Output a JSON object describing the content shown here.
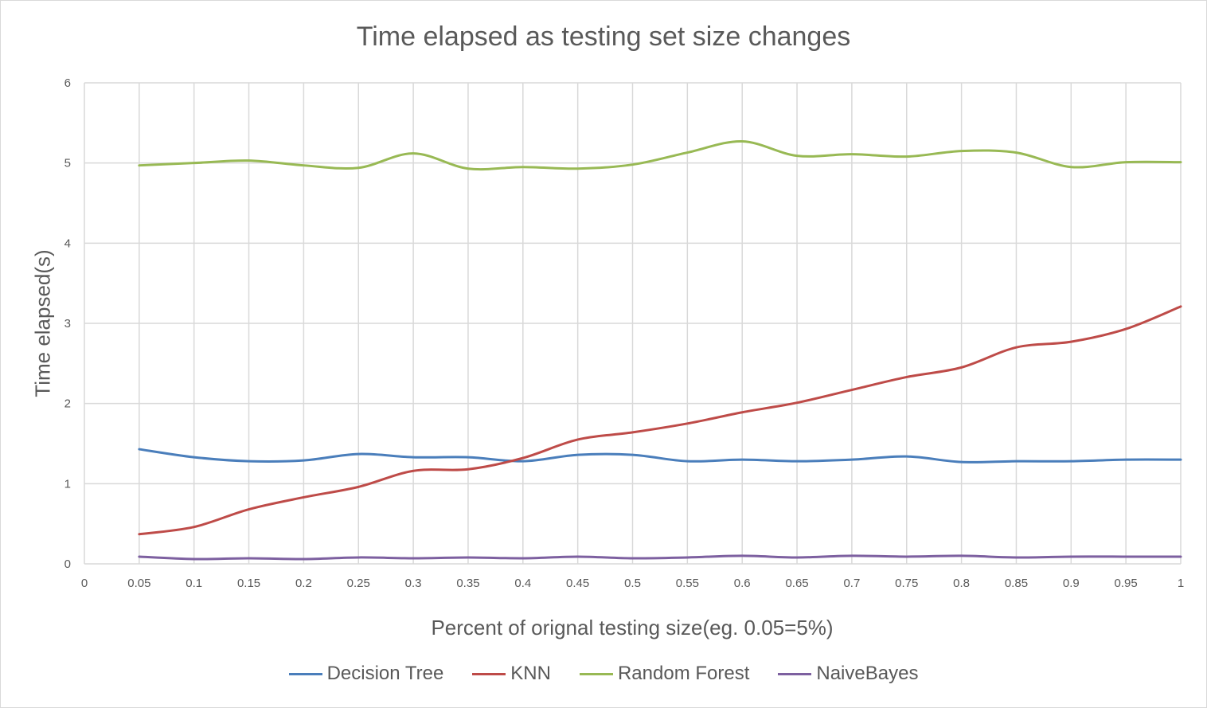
{
  "chart_data": {
    "type": "line",
    "title": "Time elapsed as testing set size changes",
    "xlabel": "Percent  of orignal testing size(eg. 0.05=5%)",
    "ylabel": "Time elapsed(s)",
    "x_ticks": [
      "0",
      "0.05",
      "0.1",
      "0.15",
      "0.2",
      "0.25",
      "0.3",
      "0.35",
      "0.4",
      "0.45",
      "0.5",
      "0.55",
      "0.6",
      "0.65",
      "0.7",
      "0.75",
      "0.8",
      "0.85",
      "0.9",
      "0.95",
      "1"
    ],
    "y_ticks": [
      "0",
      "1",
      "2",
      "3",
      "4",
      "5",
      "6"
    ],
    "ylim": [
      0,
      6
    ],
    "grid": true,
    "legend_position": "bottom",
    "x": [
      0.05,
      0.1,
      0.15,
      0.2,
      0.25,
      0.3,
      0.35,
      0.4,
      0.45,
      0.5,
      0.55,
      0.6,
      0.65,
      0.7,
      0.75,
      0.8,
      0.85,
      0.9,
      0.95,
      1
    ],
    "series": [
      {
        "name": "Decision Tree",
        "color": "#4a7ebb",
        "values": [
          1.43,
          1.33,
          1.28,
          1.29,
          1.37,
          1.33,
          1.33,
          1.28,
          1.36,
          1.36,
          1.28,
          1.3,
          1.28,
          1.3,
          1.34,
          1.27,
          1.28,
          1.28,
          1.3,
          1.3
        ]
      },
      {
        "name": "KNN",
        "color": "#be4b48",
        "values": [
          0.37,
          0.46,
          0.68,
          0.83,
          0.96,
          1.16,
          1.18,
          1.32,
          1.55,
          1.64,
          1.75,
          1.89,
          2.01,
          2.17,
          2.33,
          2.45,
          2.7,
          2.77,
          2.93,
          3.21
        ]
      },
      {
        "name": "Random Forest",
        "color": "#98b954",
        "values": [
          4.97,
          5.0,
          5.03,
          4.97,
          4.94,
          5.12,
          4.93,
          4.95,
          4.93,
          4.98,
          5.13,
          5.27,
          5.09,
          5.11,
          5.08,
          5.15,
          5.13,
          4.95,
          5.01,
          5.01
        ]
      },
      {
        "name": "NaiveBayes",
        "color": "#7d60a0",
        "values": [
          0.09,
          0.06,
          0.07,
          0.06,
          0.08,
          0.07,
          0.08,
          0.07,
          0.09,
          0.07,
          0.08,
          0.1,
          0.08,
          0.1,
          0.09,
          0.1,
          0.08,
          0.09,
          0.09,
          0.09
        ]
      }
    ]
  }
}
